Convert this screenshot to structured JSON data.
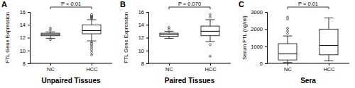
{
  "chart_data": [
    {
      "type": "box",
      "title": "A",
      "x_label": "Unpaired Tissues",
      "y_label": "FTL Gene Expression",
      "categories": [
        "NC",
        "HCC"
      ],
      "annotation": "P < 0.01",
      "ylim": [
        8,
        16
      ],
      "yticks": [
        8,
        10,
        12,
        14,
        16
      ],
      "boxes": [
        {
          "whisker_low": 11.9,
          "q1": 12.3,
          "median": 12.5,
          "q3": 12.7,
          "whisker_high": 12.9,
          "outliers": [
            13.2,
            13.5,
            11.7
          ]
        },
        {
          "whisker_low": 11.5,
          "q1": 12.6,
          "median": 13.1,
          "q3": 14.0,
          "whisker_high": 14.8,
          "outliers": [
            15.0,
            15.1,
            15.2,
            15.3,
            15.4,
            15.5,
            15.6,
            11.3,
            11.1,
            10.9,
            10.7,
            10.4,
            10.1,
            9.7,
            9.3
          ]
        }
      ]
    },
    {
      "type": "box",
      "title": "B",
      "x_label": "Paired Tissues",
      "y_label": "FTL Gene Expression",
      "categories": [
        "NC",
        "HCC"
      ],
      "annotation": "P = 0.070",
      "ylim": [
        8,
        16
      ],
      "yticks": [
        8,
        10,
        12,
        14,
        16
      ],
      "boxes": [
        {
          "whisker_low": 11.9,
          "q1": 12.2,
          "median": 12.45,
          "q3": 12.7,
          "whisker_high": 13.0,
          "outliers": [
            13.3,
            13.6
          ]
        },
        {
          "whisker_low": 11.4,
          "q1": 12.3,
          "median": 13.0,
          "q3": 13.8,
          "whisker_high": 14.8,
          "outliers": [
            15.2,
            15.6,
            10.9,
            9.1
          ]
        }
      ]
    },
    {
      "type": "box",
      "title": "C",
      "x_label": "Sera",
      "y_label": "Serum FTL (ng/ml)",
      "categories": [
        "NC",
        "HCC"
      ],
      "annotation": "P < 0.01",
      "ylim": [
        0,
        3000
      ],
      "yticks": [
        0,
        1000,
        2000,
        3000
      ],
      "boxes": [
        {
          "whisker_low": 50,
          "q1": 200,
          "median": 550,
          "q3": 1150,
          "whisker_high": 1600,
          "outliers": [
            1750,
            1900,
            2050,
            2600,
            2700
          ]
        },
        {
          "whisker_low": 150,
          "q1": 500,
          "median": 1050,
          "q3": 2000,
          "whisker_high": 2650,
          "outliers": []
        }
      ]
    }
  ]
}
